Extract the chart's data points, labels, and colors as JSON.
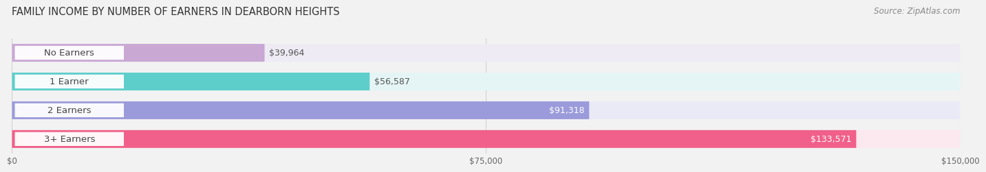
{
  "title": "FAMILY INCOME BY NUMBER OF EARNERS IN DEARBORN HEIGHTS",
  "source": "Source: ZipAtlas.com",
  "categories": [
    "No Earners",
    "1 Earner",
    "2 Earners",
    "3+ Earners"
  ],
  "values": [
    39964,
    56587,
    91318,
    133571
  ],
  "labels": [
    "$39,964",
    "$56,587",
    "$91,318",
    "$133,571"
  ],
  "bar_colors": [
    "#c9a8d4",
    "#5ececa",
    "#9b9bdb",
    "#f0608a"
  ],
  "bar_bg_colors": [
    "#eeebf5",
    "#e5f5f5",
    "#eaeaf7",
    "#fce8ef"
  ],
  "label_inside": [
    false,
    false,
    true,
    true
  ],
  "xmax": 150000,
  "xticks": [
    0,
    75000,
    150000
  ],
  "xticklabels": [
    "$0",
    "$75,000",
    "$150,000"
  ],
  "bg_color": "#f2f2f2",
  "title_fontsize": 10.5,
  "source_fontsize": 8.5,
  "label_fontsize": 9,
  "cat_fontsize": 9.5
}
